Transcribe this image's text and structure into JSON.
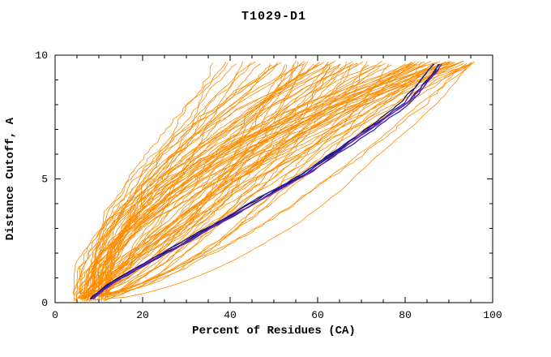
{
  "chart_data": {
    "type": "line",
    "title": "T1029-D1",
    "xlabel": "Percent of Residues (CA)",
    "ylabel": "Distance Cutoff, A",
    "xlim": [
      0,
      100
    ],
    "ylim": [
      0,
      10
    ],
    "xticks": [
      0,
      20,
      40,
      60,
      80,
      100
    ],
    "yticks": [
      0,
      5,
      10
    ],
    "x_minor_step": 5,
    "y_minor_step": 1,
    "frame": true,
    "grid": "off",
    "legend": "none",
    "colors": {
      "models": "#ff8c00",
      "best_black": "#000000",
      "best_blue": "#2424bb",
      "best_purple": "#8822aa",
      "axis": "#000000",
      "background": "#ffffff"
    },
    "background_series": {
      "name": "all-models",
      "color": "#ff8c00",
      "count": 92,
      "seed": 7,
      "x_start_range": [
        4,
        12
      ],
      "x_end_range": [
        28,
        96
      ],
      "exponent_range": [
        0.55,
        2.1
      ],
      "wiggle": 2.4,
      "y_top": 9.7
    },
    "highlight_base_points": [
      [
        8,
        0.1
      ],
      [
        10,
        0.4
      ],
      [
        13,
        0.8
      ],
      [
        16,
        1.1
      ],
      [
        19,
        1.4
      ],
      [
        23,
        1.8
      ],
      [
        27,
        2.2
      ],
      [
        30,
        2.5
      ],
      [
        33,
        2.8
      ],
      [
        35,
        3.0
      ],
      [
        38,
        3.3
      ],
      [
        41,
        3.6
      ],
      [
        45,
        4.0
      ],
      [
        49,
        4.4
      ],
      [
        53,
        4.8
      ],
      [
        57,
        5.2
      ],
      [
        61,
        5.7
      ],
      [
        65,
        6.2
      ],
      [
        69,
        6.7
      ],
      [
        73,
        7.2
      ],
      [
        77,
        7.7
      ],
      [
        80,
        8.1
      ],
      [
        82,
        8.5
      ],
      [
        84,
        8.9
      ],
      [
        86,
        9.3
      ],
      [
        87,
        9.6
      ],
      [
        88,
        9.7
      ]
    ],
    "highlight_groups": [
      {
        "name": "best-model-black",
        "color": "#000000",
        "count": 2,
        "seed": 11,
        "offset": 1.2,
        "width": 1.1
      },
      {
        "name": "best-model-blue",
        "color": "#2424bb",
        "count": 3,
        "seed": 23,
        "offset": 1.5,
        "width": 1.3
      },
      {
        "name": "best-model-purple",
        "color": "#8822aa",
        "count": 1,
        "seed": 31,
        "offset": 2.0,
        "width": 1.2
      }
    ]
  }
}
